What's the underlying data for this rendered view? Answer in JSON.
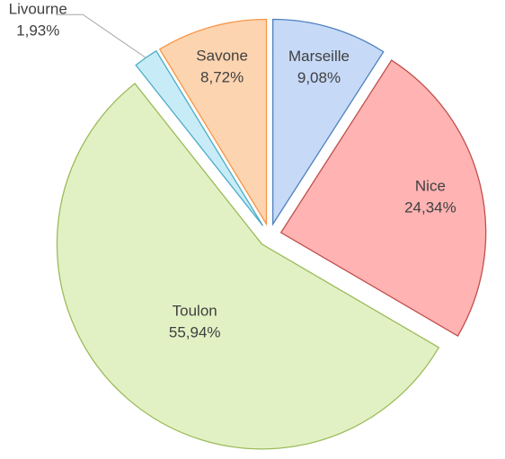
{
  "chart_data": {
    "type": "pie",
    "categories": [
      "Marseille",
      "Nice",
      "Toulon",
      "Livourne",
      "Savone"
    ],
    "values": [
      9.08,
      24.34,
      55.94,
      1.93,
      8.72
    ],
    "value_labels": [
      "9,08%",
      "24,34%",
      "55,94%",
      "1,93%",
      "8,72%"
    ],
    "colors": [
      "#c6d9f7",
      "#ffb3b3",
      "#e2f1c4",
      "#c8ecf7",
      "#fdd4b0"
    ],
    "edgecolors": [
      "#4f81bd",
      "#c0504d",
      "#9bbb59",
      "#4bacc6",
      "#f79646"
    ]
  }
}
